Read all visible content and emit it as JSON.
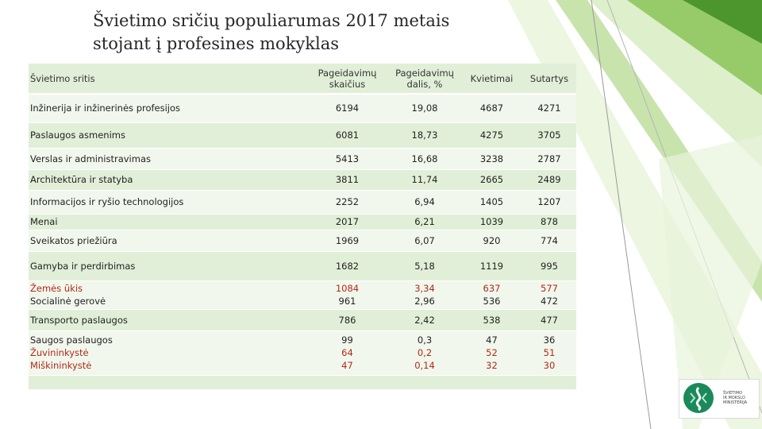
{
  "title": {
    "line1": "Švietimo sričių populiarumas 2017 metais",
    "line2": "stojant į profesines mokyklas"
  },
  "table": {
    "headers": {
      "area": "Švietimo sritis",
      "wish_count_1": "Pageidavimų",
      "wish_count_2": "skaičius",
      "wish_share_1": "Pageidavimų",
      "wish_share_2": "dalis, %",
      "invitations": "Kvietimai",
      "contracts": "Sutartys"
    },
    "rows": [
      {
        "area": "Inžinerija ir inžinerinės profesijos",
        "wishes": "6194",
        "share": "19,08",
        "invitations": "4687",
        "contracts": "4271"
      },
      {
        "area": "Paslaugos asmenims",
        "wishes": "6081",
        "share": "18,73",
        "invitations": "4275",
        "contracts": "3705"
      },
      {
        "area": "Verslas ir administravimas",
        "wishes": "5413",
        "share": "16,68",
        "invitations": "3238",
        "contracts": "2787"
      },
      {
        "area": "Architektūra ir statyba",
        "wishes": "3811",
        "share": "11,74",
        "invitations": "2665",
        "contracts": "2489"
      },
      {
        "area": "Informacijos ir ryšio technologijos",
        "wishes": "2252",
        "share": "6,94",
        "invitations": "1405",
        "contracts": "1207"
      },
      {
        "area": "Menai",
        "wishes": "2017",
        "share": "6,21",
        "invitations": "1039",
        "contracts": "878"
      },
      {
        "area": "Sveikatos priežiūra",
        "wishes": "1969",
        "share": "6,07",
        "invitations": "920",
        "contracts": "774"
      },
      {
        "area": "Gamyba ir perdirbimas",
        "wishes": "1682",
        "share": "5,18",
        "invitations": "1119",
        "contracts": "995"
      }
    ],
    "pair1": [
      {
        "area": "Žemės ūkis",
        "wishes": "1084",
        "share": "3,34",
        "invitations": "637",
        "contracts": "577"
      },
      {
        "area": "Socialinė gerovė",
        "wishes": "961",
        "share": "2,96",
        "invitations": "536",
        "contracts": "472"
      }
    ],
    "transport": {
      "area": "Transporto paslaugos",
      "wishes": "786",
      "share": "2,42",
      "invitations": "538",
      "contracts": "477"
    },
    "triple": [
      {
        "area": "Saugos paslaugos",
        "wishes": "99",
        "share": "0,3",
        "invitations": "47",
        "contracts": "36"
      },
      {
        "area": "Žuvininkystė",
        "wishes": "64",
        "share": "0,2",
        "invitations": "52",
        "contracts": "51"
      },
      {
        "area": "Miškininkystė",
        "wishes": "47",
        "share": "0,14",
        "invitations": "32",
        "contracts": "30"
      }
    ]
  },
  "logo": {
    "line1": "ŠVIETIMO",
    "line2": "IR MOKSLO",
    "line3": "MINISTERIJA"
  },
  "colors": {
    "band_dark": "#e2efd8",
    "band_light": "#f1f7ec",
    "accent_green": "#4c9a2a",
    "highlight_red": "#b02a1a"
  }
}
